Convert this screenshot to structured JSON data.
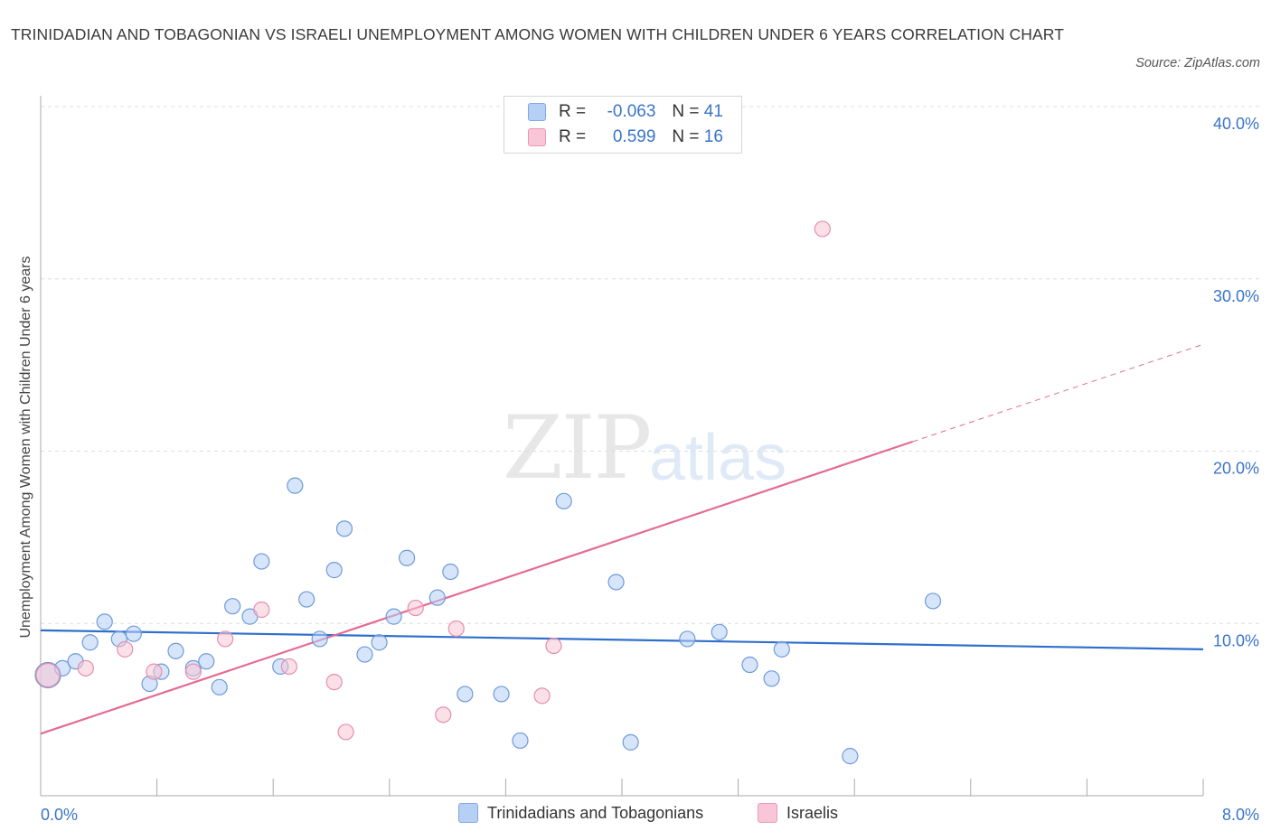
{
  "title": "TRINIDADIAN AND TOBAGONIAN VS ISRAELI UNEMPLOYMENT AMONG WOMEN WITH CHILDREN UNDER 6 YEARS CORRELATION CHART",
  "source": "Source: ZipAtlas.com",
  "watermark": {
    "zip": "ZIP",
    "atlas": "atlas"
  },
  "legend": {
    "r_label": "R =",
    "n_label": "N =",
    "rows": [
      {
        "r": "-0.063",
        "n": "41",
        "color": "#b6d0f5"
      },
      {
        "r": "0.599",
        "n": "16",
        "color": "#f8c6d6"
      }
    ]
  },
  "bottom_legend": [
    {
      "label": "Trinidadians and Tobagonians",
      "color": "#b6d0f5"
    },
    {
      "label": "Israelis",
      "color": "#f8c6d6"
    }
  ],
  "chart_data": {
    "type": "scatter",
    "xlabel": "",
    "ylabel": "Unemployment Among Women with Children Under 6 years",
    "xlim": [
      0,
      8
    ],
    "ylim": [
      0,
      40
    ],
    "x_tick_labels": [
      "0.0%",
      "8.0%"
    ],
    "y_ticks": [
      10,
      20,
      30,
      40
    ],
    "y_tick_labels": [
      "10.0%",
      "20.0%",
      "30.0%",
      "40.0%"
    ],
    "grid": true,
    "legend_position": "top-center",
    "series": [
      {
        "name": "Trinidadians and Tobagonians",
        "color": "#b6d0f5",
        "stroke": "#6f9ad8",
        "line_color": "#2f6fcc",
        "trend": {
          "x0": 0,
          "y0": 9.6,
          "x1": 8,
          "y1": 8.5,
          "dashed_from": null
        },
        "points": [
          [
            0.05,
            7.0
          ],
          [
            0.15,
            7.4
          ],
          [
            0.24,
            7.8
          ],
          [
            0.34,
            8.9
          ],
          [
            0.44,
            10.1
          ],
          [
            0.54,
            9.1
          ],
          [
            0.64,
            9.4
          ],
          [
            0.75,
            6.5
          ],
          [
            0.83,
            7.2
          ],
          [
            0.93,
            8.4
          ],
          [
            1.05,
            7.4
          ],
          [
            1.14,
            7.8
          ],
          [
            1.23,
            6.3
          ],
          [
            1.32,
            11.0
          ],
          [
            1.44,
            10.4
          ],
          [
            1.52,
            13.6
          ],
          [
            1.65,
            7.5
          ],
          [
            1.75,
            18.0
          ],
          [
            1.83,
            11.4
          ],
          [
            1.92,
            9.1
          ],
          [
            2.02,
            13.1
          ],
          [
            2.09,
            15.5
          ],
          [
            2.23,
            8.2
          ],
          [
            2.33,
            8.9
          ],
          [
            2.43,
            10.4
          ],
          [
            2.52,
            13.8
          ],
          [
            2.73,
            11.5
          ],
          [
            2.82,
            13.0
          ],
          [
            2.92,
            5.9
          ],
          [
            3.17,
            5.9
          ],
          [
            3.3,
            3.2
          ],
          [
            3.6,
            17.1
          ],
          [
            3.96,
            12.4
          ],
          [
            4.06,
            3.1
          ],
          [
            4.45,
            9.1
          ],
          [
            4.67,
            9.5
          ],
          [
            4.88,
            7.6
          ],
          [
            5.03,
            6.8
          ],
          [
            5.1,
            8.5
          ],
          [
            5.57,
            2.3
          ],
          [
            6.14,
            11.3
          ]
        ]
      },
      {
        "name": "Israelis",
        "color": "#f8c6d6",
        "stroke": "#e58fae",
        "line_color": "#e46b95",
        "trend": {
          "x0": 0,
          "y0": 3.6,
          "x1": 8,
          "y1": 26.2,
          "dashed_from": 6.0
        },
        "points": [
          [
            0.05,
            7.0
          ],
          [
            0.31,
            7.4
          ],
          [
            0.58,
            8.5
          ],
          [
            0.78,
            7.2
          ],
          [
            1.05,
            7.2
          ],
          [
            1.27,
            9.1
          ],
          [
            1.52,
            10.8
          ],
          [
            1.71,
            7.5
          ],
          [
            2.02,
            6.6
          ],
          [
            2.1,
            3.7
          ],
          [
            2.58,
            10.9
          ],
          [
            2.77,
            4.7
          ],
          [
            2.86,
            9.7
          ],
          [
            3.45,
            5.8
          ],
          [
            3.53,
            8.7
          ],
          [
            5.38,
            32.9
          ]
        ]
      }
    ]
  }
}
